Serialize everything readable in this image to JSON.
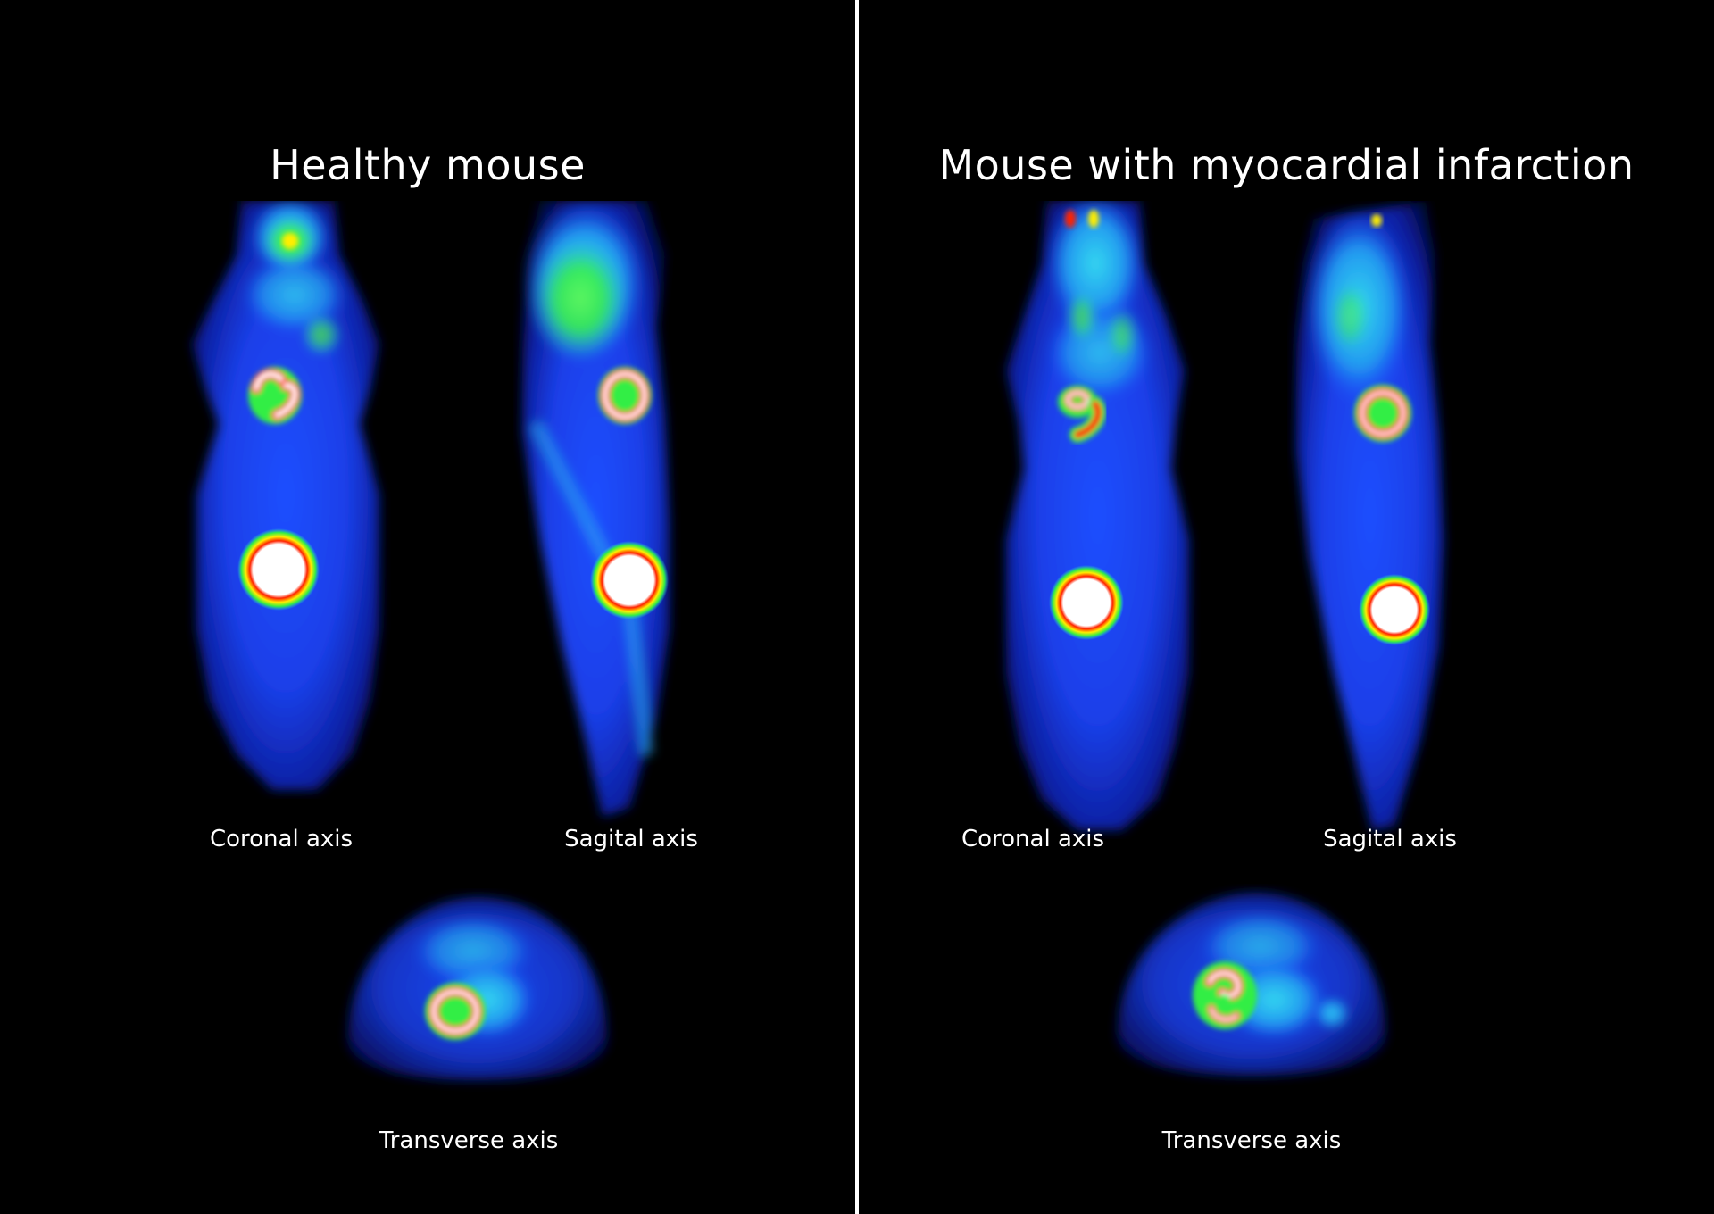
{
  "left_panel": {
    "title": "Healthy mouse",
    "coronal_label": "Coronal axis",
    "sagittal_label": "Sagital axis",
    "transverse_label": "Transverse axis"
  },
  "right_panel": {
    "title": "Mouse with myocardial infarction",
    "coronal_label": "Coronal axis",
    "sagittal_label": "Sagital axis",
    "transverse_label": "Transverse axis"
  },
  "colors": {
    "background": "#000000",
    "body_blue": "#1e4dff",
    "tissue_cyan": "#22c8e8",
    "uptake_green": "#33ee44",
    "uptake_yellow": "#ffee00",
    "uptake_red": "#ff2200",
    "saturated_white": "#ffffff",
    "divider": "#ffffff"
  }
}
